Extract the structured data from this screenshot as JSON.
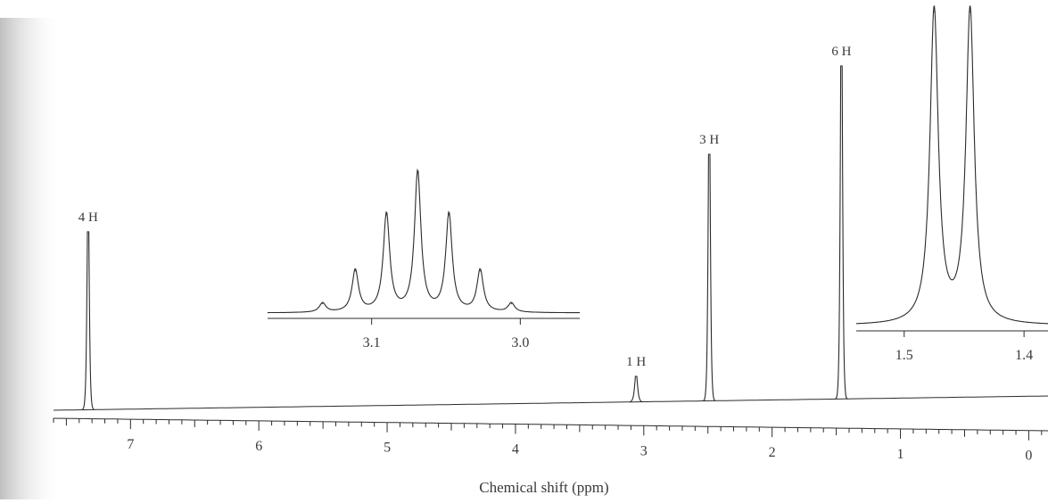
{
  "chart_data": {
    "type": "line",
    "xlabel": "Chemical shift (ppm)",
    "ylabel": "",
    "x_reversed": true,
    "xlim": [
      7.6,
      -0.15
    ],
    "x_ticks": [
      "7",
      "6",
      "5",
      "4",
      "3",
      "2",
      "1",
      "0"
    ],
    "peaks": [
      {
        "shift": 7.33,
        "height": 0.7,
        "integral": "4 H"
      },
      {
        "shift": 3.06,
        "height": 0.1,
        "integral": "1 H"
      },
      {
        "shift": 2.49,
        "height": 0.97,
        "integral": "3 H"
      },
      {
        "shift": 1.46,
        "height": 1.31,
        "integral": "6 H"
      }
    ],
    "insets": [
      {
        "name": "septet",
        "xlim": [
          3.17,
          2.96
        ],
        "x_ticks": [
          "3.1",
          "3.0"
        ],
        "peaks": [
          {
            "shift": 3.133,
            "height": 0.06
          },
          {
            "shift": 3.111,
            "height": 0.27
          },
          {
            "shift": 3.09,
            "height": 0.63
          },
          {
            "shift": 3.069,
            "height": 0.9
          },
          {
            "shift": 3.048,
            "height": 0.63
          },
          {
            "shift": 3.027,
            "height": 0.27
          },
          {
            "shift": 3.006,
            "height": 0.06
          }
        ]
      },
      {
        "name": "doublet",
        "xlim": [
          1.54,
          1.38
        ],
        "x_ticks": [
          "1.5",
          "1.4"
        ],
        "peaks": [
          {
            "shift": 1.475,
            "height": 1.0
          },
          {
            "shift": 1.445,
            "height": 1.0
          }
        ]
      }
    ],
    "grid": false,
    "colors": {
      "trace": "#2b2b2b",
      "background": "#ffffff",
      "label": "#3a3a3a"
    }
  }
}
